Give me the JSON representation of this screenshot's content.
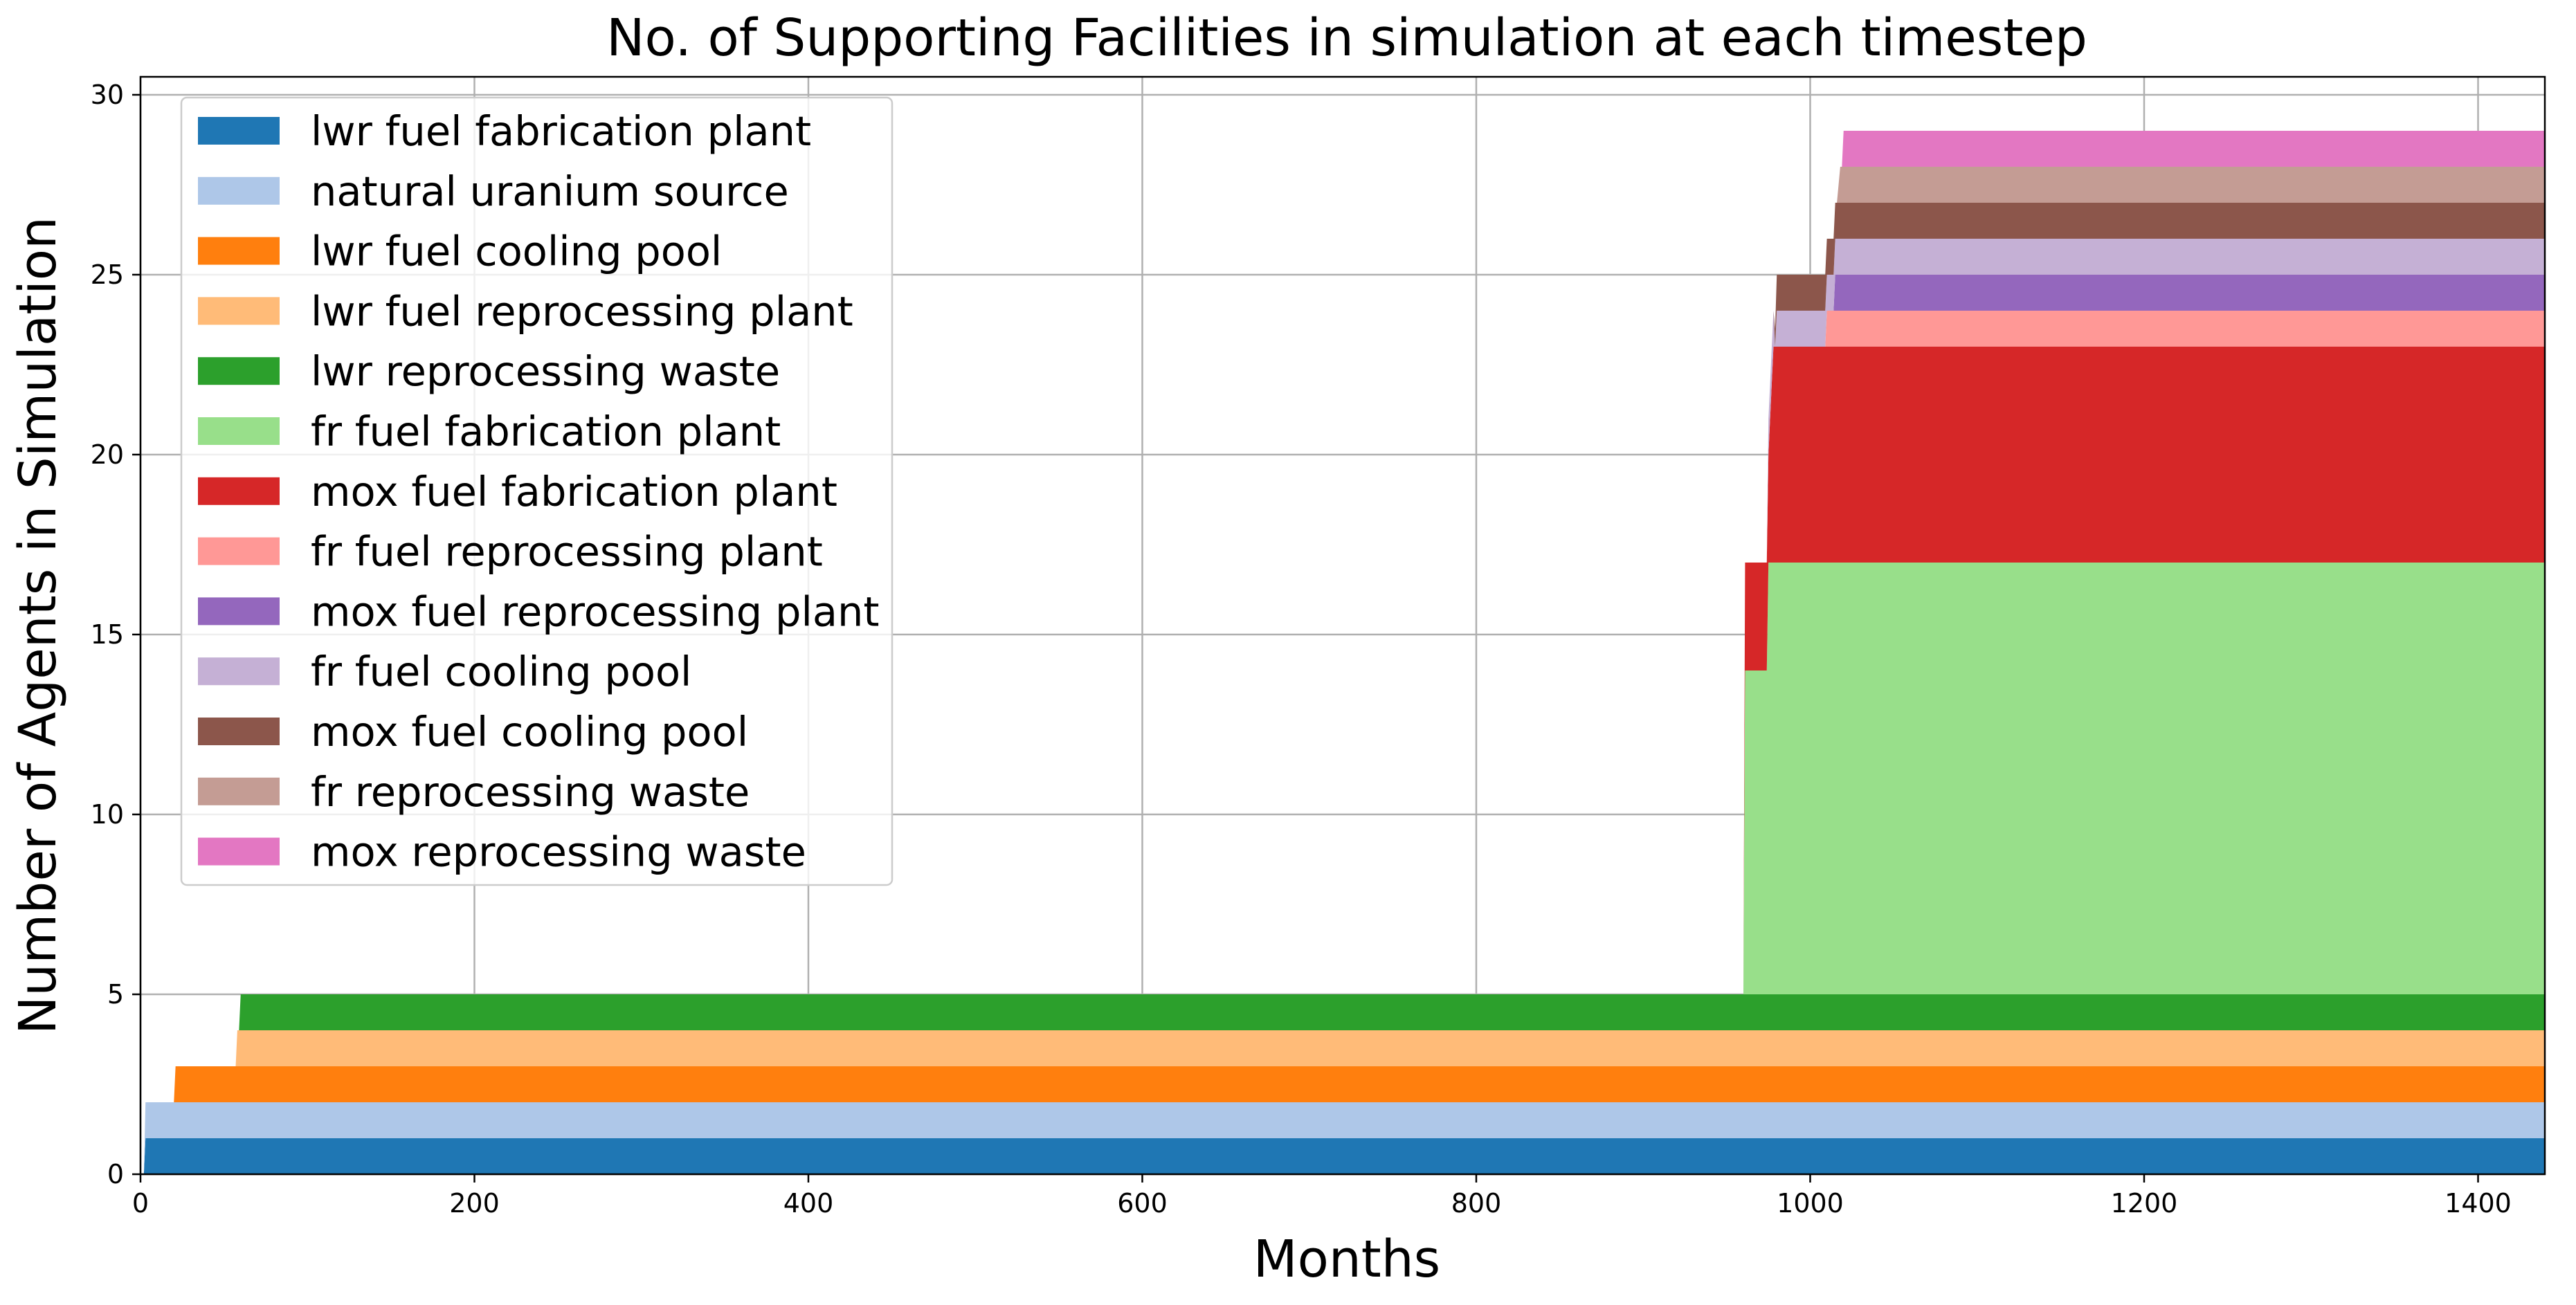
{
  "chart_data": {
    "type": "area",
    "title": "No. of Supporting Facilities in simulation at each timestep",
    "xlabel": "Months",
    "ylabel": "Number of Agents in Simulation",
    "xlim": [
      0,
      1440
    ],
    "ylim": [
      0,
      30.5
    ],
    "xticks": [
      0,
      200,
      400,
      600,
      800,
      1000,
      1200,
      1400
    ],
    "yticks": [
      0,
      5,
      10,
      15,
      20,
      25,
      30
    ],
    "grid": true,
    "legend_position": "upper-left",
    "stacked": true,
    "series": [
      {
        "name": "lwr fuel fabrication plant",
        "color": "#1f77b4",
        "points": [
          [
            0,
            0
          ],
          [
            2,
            0
          ],
          [
            3,
            1
          ],
          [
            1440,
            1
          ]
        ]
      },
      {
        "name": "natural uranium source",
        "color": "#aec7e8",
        "points": [
          [
            0,
            0
          ],
          [
            2,
            0
          ],
          [
            3,
            1
          ],
          [
            1440,
            1
          ]
        ]
      },
      {
        "name": "lwr fuel cooling pool",
        "color": "#ff7f0e",
        "points": [
          [
            0,
            0
          ],
          [
            20,
            0
          ],
          [
            21,
            1
          ],
          [
            1440,
            1
          ]
        ]
      },
      {
        "name": "lwr fuel reprocessing plant",
        "color": "#ffbb78",
        "points": [
          [
            0,
            0
          ],
          [
            57,
            0
          ],
          [
            58,
            1
          ],
          [
            1440,
            1
          ]
        ]
      },
      {
        "name": "lwr reprocessing waste",
        "color": "#2ca02c",
        "points": [
          [
            0,
            0
          ],
          [
            59,
            0
          ],
          [
            60,
            1
          ],
          [
            1440,
            1
          ]
        ]
      },
      {
        "name": "fr fuel fabrication plant",
        "color": "#98df8a",
        "points": [
          [
            0,
            0
          ],
          [
            960,
            0
          ],
          [
            961,
            9
          ],
          [
            974,
            9
          ],
          [
            975,
            12
          ],
          [
            1440,
            12
          ]
        ]
      },
      {
        "name": "mox fuel fabrication plant",
        "color": "#d62728",
        "points": [
          [
            0,
            0
          ],
          [
            960,
            0
          ],
          [
            961,
            3
          ],
          [
            974,
            3
          ],
          [
            975,
            3
          ],
          [
            978,
            6
          ],
          [
            1440,
            6
          ]
        ]
      },
      {
        "name": "fr fuel reprocessing plant",
        "color": "#ff9896",
        "points": [
          [
            0,
            0
          ],
          [
            1009,
            0
          ],
          [
            1010,
            1
          ],
          [
            1440,
            1
          ]
        ]
      },
      {
        "name": "mox fuel reprocessing plant",
        "color": "#9467bd",
        "points": [
          [
            0,
            0
          ],
          [
            1014,
            0
          ],
          [
            1015,
            1
          ],
          [
            1440,
            1
          ]
        ]
      },
      {
        "name": "fr fuel cooling pool",
        "color": "#c5b0d5",
        "points": [
          [
            0,
            0
          ],
          [
            974,
            0
          ],
          [
            975,
            1
          ],
          [
            978,
            1
          ],
          [
            979,
            0
          ],
          [
            980,
            1
          ],
          [
            1014,
            1
          ],
          [
            1015,
            1
          ],
          [
            1440,
            1
          ]
        ]
      },
      {
        "name": "mox fuel cooling pool",
        "color": "#8c564b",
        "points": [
          [
            0,
            0
          ],
          [
            978,
            0
          ],
          [
            980,
            1
          ],
          [
            1440,
            1
          ]
        ]
      },
      {
        "name": "fr reprocessing waste",
        "color": "#c49c94",
        "points": [
          [
            0,
            0
          ],
          [
            1016,
            0
          ],
          [
            1018,
            1
          ],
          [
            1440,
            1
          ]
        ]
      },
      {
        "name": "mox reprocessing waste",
        "color": "#e377c2",
        "points": [
          [
            0,
            0
          ],
          [
            1019,
            0
          ],
          [
            1020,
            1
          ],
          [
            1440,
            1
          ]
        ]
      }
    ]
  }
}
